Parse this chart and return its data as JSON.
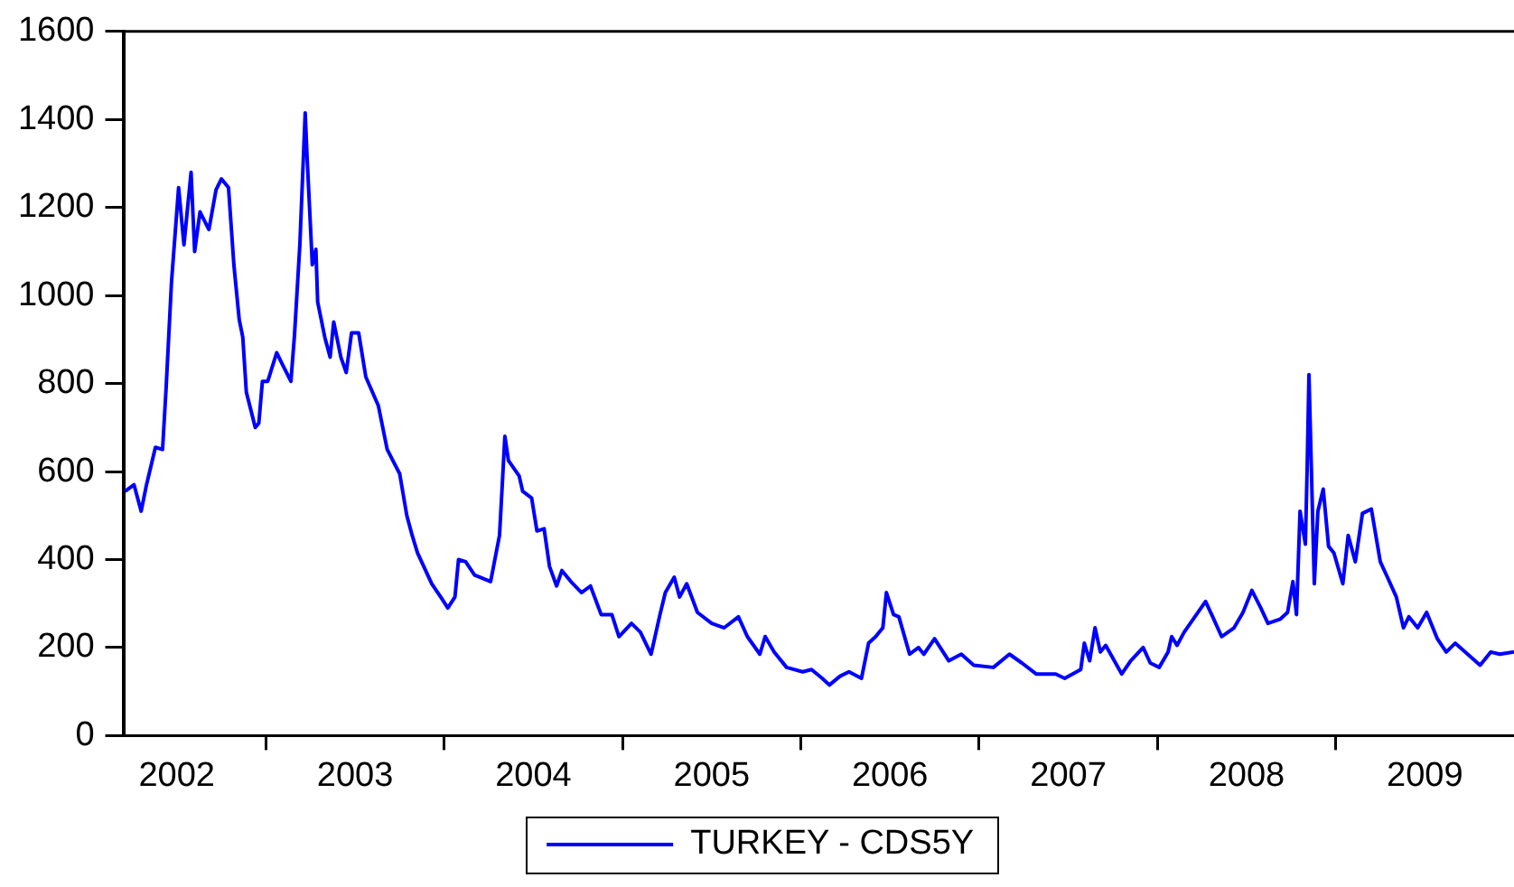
{
  "chart_data": {
    "type": "line",
    "legend": "bottom",
    "grid": false,
    "marker": "none",
    "line_style": "solid",
    "xlim": [
      2002.2,
      2010.0
    ],
    "xticks": [
      {
        "value": 2002.5,
        "label": "2002"
      },
      {
        "value": 2003,
        "label": null
      },
      {
        "value": 2003.5,
        "label": "2003"
      },
      {
        "value": 2004,
        "label": null
      },
      {
        "value": 2004.5,
        "label": "2004"
      },
      {
        "value": 2005,
        "label": null
      },
      {
        "value": 2005.5,
        "label": "2005"
      },
      {
        "value": 2006,
        "label": null
      },
      {
        "value": 2006.5,
        "label": "2006"
      },
      {
        "value": 2007,
        "label": null
      },
      {
        "value": 2007.5,
        "label": "2007"
      },
      {
        "value": 2008,
        "label": null
      },
      {
        "value": 2008.5,
        "label": "2008"
      },
      {
        "value": 2009,
        "label": null
      },
      {
        "value": 2009.5,
        "label": "2009"
      }
    ],
    "ylim": [
      0,
      1600
    ],
    "yticks": [
      0,
      200,
      400,
      600,
      800,
      1000,
      1200,
      1400,
      1600
    ],
    "x": [
      2002.21,
      2002.26,
      2002.3,
      2002.33,
      2002.38,
      2002.42,
      2002.44,
      2002.47,
      2002.51,
      2002.54,
      2002.58,
      2002.6,
      2002.63,
      2002.68,
      2002.72,
      2002.75,
      2002.79,
      2002.82,
      2002.85,
      2002.87,
      2002.89,
      2002.94,
      2002.96,
      2002.98,
      2003.01,
      2003.06,
      2003.09,
      2003.14,
      2003.16,
      2003.19,
      2003.22,
      2003.23,
      2003.26,
      2003.28,
      2003.29,
      2003.33,
      2003.36,
      2003.38,
      2003.42,
      2003.45,
      2003.48,
      2003.52,
      2003.56,
      2003.63,
      2003.68,
      2003.75,
      2003.79,
      2003.82,
      2003.85,
      2003.93,
      2003.98,
      2004.02,
      2004.06,
      2004.08,
      2004.12,
      2004.17,
      2004.26,
      2004.31,
      2004.34,
      2004.36,
      2004.42,
      2004.44,
      2004.49,
      2004.52,
      2004.56,
      2004.59,
      2004.63,
      2004.66,
      2004.71,
      2004.77,
      2004.82,
      2004.88,
      2004.94,
      2004.98,
      2005.05,
      2005.1,
      2005.16,
      2005.21,
      2005.24,
      2005.29,
      2005.32,
      2005.36,
      2005.42,
      2005.5,
      2005.57,
      2005.65,
      2005.7,
      2005.77,
      2005.8,
      2005.85,
      2005.92,
      2006.01,
      2006.06,
      2006.12,
      2006.16,
      2006.22,
      2006.27,
      2006.34,
      2006.38,
      2006.42,
      2006.46,
      2006.48,
      2006.52,
      2006.55,
      2006.61,
      2006.66,
      2006.69,
      2006.75,
      2006.83,
      2006.9,
      2006.97,
      2007.08,
      2007.17,
      2007.24,
      2007.32,
      2007.43,
      2007.48,
      2007.57,
      2007.59,
      2007.62,
      2007.65,
      2007.68,
      2007.71,
      2007.8,
      2007.85,
      2007.92,
      2007.96,
      2008.01,
      2008.06,
      2008.08,
      2008.11,
      2008.15,
      2008.27,
      2008.31,
      2008.36,
      2008.43,
      2008.48,
      2008.53,
      2008.58,
      2008.62,
      2008.69,
      2008.73,
      2008.76,
      2008.78,
      2008.8,
      2008.83,
      2008.84,
      2008.85,
      2008.88,
      2008.9,
      2008.93,
      2008.96,
      2008.99,
      2009.04,
      2009.07,
      2009.11,
      2009.15,
      2009.2,
      2009.25,
      2009.29,
      2009.34,
      2009.38,
      2009.41,
      2009.46,
      2009.51,
      2009.57,
      2009.62,
      2009.67,
      2009.74,
      2009.81,
      2009.87,
      2009.92,
      2010.0
    ],
    "series": [
      {
        "name": "TURKEY - CDS5Y",
        "color": "#0000ff",
        "values": [
          555,
          570,
          510,
          570,
          655,
          650,
          790,
          1030,
          1245,
          1115,
          1280,
          1100,
          1190,
          1150,
          1240,
          1265,
          1245,
          1070,
          945,
          905,
          780,
          700,
          710,
          805,
          805,
          870,
          845,
          805,
          910,
          1115,
          1415,
          1320,
          1070,
          1105,
          985,
          905,
          860,
          940,
          860,
          825,
          915,
          915,
          815,
          750,
          650,
          595,
          500,
          455,
          415,
          345,
          315,
          290,
          315,
          400,
          395,
          365,
          350,
          455,
          680,
          625,
          590,
          555,
          540,
          465,
          470,
          385,
          340,
          375,
          350,
          325,
          340,
          275,
          275,
          225,
          255,
          235,
          185,
          275,
          325,
          360,
          315,
          345,
          280,
          255,
          245,
          270,
          225,
          185,
          225,
          190,
          155,
          145,
          150,
          130,
          115,
          135,
          145,
          130,
          210,
          225,
          245,
          325,
          275,
          270,
          185,
          200,
          185,
          220,
          170,
          185,
          160,
          155,
          185,
          165,
          140,
          140,
          130,
          150,
          210,
          170,
          245,
          190,
          205,
          140,
          170,
          200,
          165,
          155,
          190,
          225,
          205,
          235,
          305,
          270,
          225,
          245,
          280,
          330,
          290,
          255,
          265,
          280,
          350,
          275,
          510,
          435,
          610,
          820,
          345,
          510,
          560,
          430,
          415,
          345,
          455,
          395,
          505,
          515,
          395,
          360,
          315,
          245,
          270,
          245,
          280,
          220,
          190,
          210,
          185,
          160,
          190,
          185,
          190
        ]
      }
    ]
  }
}
